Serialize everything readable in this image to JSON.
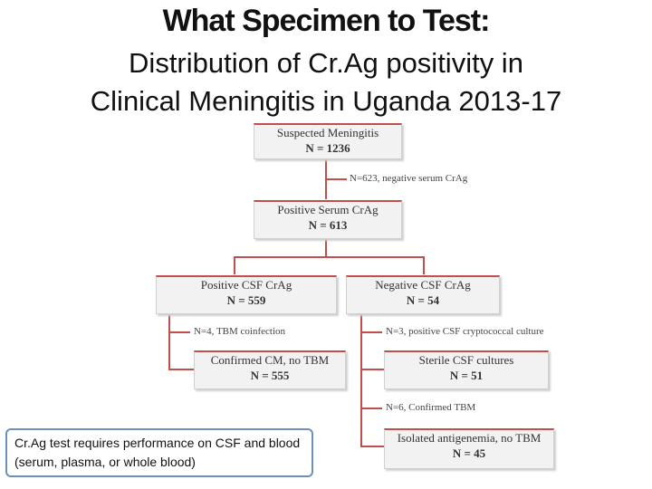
{
  "title": {
    "line1": "What Specimen to Test:",
    "line2": "Distribution of Cr.Ag positivity in",
    "line3": "Clinical Meningitis in Uganda 2013-17"
  },
  "flowchart": {
    "suspected": {
      "label": "Suspected Meningitis",
      "n": "N = 1236"
    },
    "note_negative_serum": "N=623, negative serum CrAg",
    "positive_serum": {
      "label": "Positive Serum CrAg",
      "n": "N = 613"
    },
    "positive_csf": {
      "label": "Positive CSF CrAg",
      "n": "N = 559"
    },
    "negative_csf": {
      "label": "Negative CSF CrAg",
      "n": "N = 54"
    },
    "note_tbm_coinfection": "N=4, TBM coinfection",
    "note_positive_culture": "N=3, positive CSF cryptococcal culture",
    "confirmed_cm": {
      "label": "Confirmed CM, no TBM",
      "n": "N = 555"
    },
    "sterile_csf": {
      "label": "Sterile CSF cultures",
      "n": "N = 51"
    },
    "note_confirmed_tbm": "N=6, Confirmed TBM",
    "isolated_antigenemia": {
      "label": "Isolated antigenemia, no TBM",
      "n": "N = 45"
    }
  },
  "callout": "Cr.Ag test requires performance on CSF and blood (serum, plasma, or whole blood)",
  "colors": {
    "connector": "#c0504d",
    "box_fill": "#f2f2f2",
    "callout_border": "#6d8fb8"
  }
}
